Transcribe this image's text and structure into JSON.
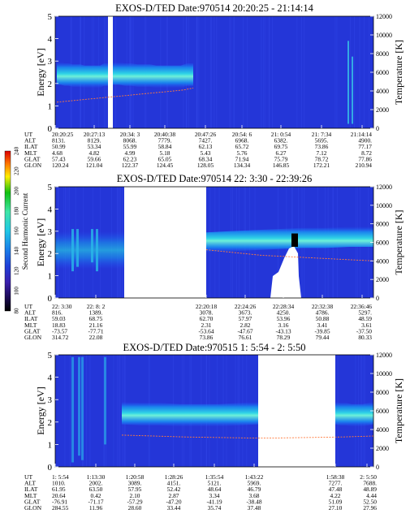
{
  "chart_data": {
    "type": "heatmap",
    "colorbar": {
      "label": "Second Harmonic Current",
      "ticks": [
        "80",
        "100",
        "120",
        "140",
        "160",
        "180",
        "200",
        "220",
        "240"
      ],
      "colors": [
        "#000000",
        "#2a0a6e",
        "#3a1fae",
        "#1f3fd8",
        "#1a7ce8",
        "#20c7e6",
        "#3fe6a8",
        "#10c010",
        "#ffee00",
        "#ff8800",
        "#dd0000"
      ]
    },
    "panels": [
      {
        "title": "EXOS-D/TED  Date:970514  20:20:25 - 21:14:14",
        "ylabel": "Energy [eV]",
        "ylabel_right": "Temperature [K]",
        "ylim": [
          0,
          5
        ],
        "yticks": [
          "0",
          "1",
          "2",
          "3",
          "4",
          "5"
        ],
        "ylim_right": [
          0,
          12000
        ],
        "yticks_right": [
          "0",
          "2000",
          "4000",
          "6000",
          "8000",
          "10000",
          "12000"
        ],
        "row_labels": [
          "UT",
          "ALT",
          "ILAT",
          "MLT",
          "GLAT",
          "GLON"
        ],
        "columns": [
          [
            "20:20:25",
            "8131.",
            "50.99",
            "4.68",
            "57.43",
            "120.24"
          ],
          [
            "20:27:13",
            "8129.",
            "53.34",
            "4.82",
            "59.66",
            "121.04"
          ],
          [
            "20:34: 3",
            "8068.",
            "55.99",
            "4.99",
            "62.23",
            "122.37"
          ],
          [
            "20:40:38",
            "7779.",
            "58.84",
            "5.18",
            "65.05",
            "124.45"
          ],
          [
            "20:47:26",
            "7427.",
            "62.13",
            "5.43",
            "68.34",
            "128.05"
          ],
          [
            "20:54: 6",
            "6968.",
            "65.72",
            "5.76",
            "71.94",
            "134.34"
          ],
          [
            "21: 0:54",
            "6382.",
            "69.75",
            "6.27",
            "75.79",
            "146.85"
          ],
          [
            "21: 7:34",
            "5695.",
            "73.86",
            "7.12",
            "78.72",
            "172.21"
          ],
          [
            "21:14:14",
            "4900.",
            "77.17",
            "8.72",
            "77.86",
            "210.94"
          ]
        ],
        "band_center_ev": [
          2.45,
          2.45,
          2.4,
          2.4,
          2.35,
          2.35,
          2.35,
          2.3,
          2.3,
          2.3,
          2.3,
          2.3,
          2.4,
          2.4
        ],
        "temperature_k": [
          2800,
          2900,
          3000,
          3100,
          3200,
          3300,
          3400,
          3500,
          3600,
          3700,
          3800,
          3900,
          4000,
          4100,
          4300
        ]
      },
      {
        "title": "EXOS-D/TED   Date:970514  22: 3:30 - 22:39:26",
        "ylabel": "Energy [eV]",
        "ylabel_right": "Temperature [K]",
        "ylim": [
          0,
          5
        ],
        "yticks": [
          "0",
          "1",
          "2",
          "3",
          "4",
          "5"
        ],
        "ylim_right": [
          0,
          12000
        ],
        "yticks_right": [
          "0",
          "2000",
          "4000",
          "6000",
          "8000",
          "10000",
          "12000"
        ],
        "row_labels": [
          "UT",
          "ALT",
          "ILAT",
          "MLT",
          "GLAT",
          "GLON"
        ],
        "columns": [
          [
            "22: 3:30",
            "816.",
            "59.03",
            "18.83",
            "-73.57",
            "314.72"
          ],
          [
            "22: 8: 2",
            "1389.",
            "68.75",
            "21.16",
            "-77.71",
            "22.08"
          ],
          [
            "22:20:18",
            "3078.",
            "62.70",
            "2.31",
            "-53.64",
            "73.86"
          ],
          [
            "22:24:26",
            "3673.",
            "57.97",
            "2.82",
            "-47.67",
            "76.61"
          ],
          [
            "22:28:34",
            "4250.",
            "53.96",
            "3.16",
            "-43.13",
            "78.29"
          ],
          [
            "22:32:38",
            "4786.",
            "50.88",
            "3.41",
            "-39.85",
            "79.44"
          ],
          [
            "22:36:46",
            "5297.",
            "48.59",
            "3.61",
            "-37.50",
            "80.33"
          ]
        ],
        "band_center_ev": [
          2.5,
          2.55,
          2.6,
          2.65,
          2.7,
          2.7,
          2.75,
          2.75
        ],
        "temperature_k": [
          5200,
          5000,
          4800,
          4600,
          4500,
          4400,
          4300,
          4200,
          4100,
          4000
        ]
      },
      {
        "title": "EXOS-D/TED   Date:970515  1: 5:54 - 2: 5:50",
        "ylabel": "Energy [eV]",
        "ylabel_right": "Temperature [K]",
        "ylim": [
          0,
          5
        ],
        "yticks": [
          "0",
          "1",
          "2",
          "3",
          "4",
          "5"
        ],
        "ylim_right": [
          0,
          12000
        ],
        "yticks_right": [
          "0",
          "2000",
          "4000",
          "6000",
          "8000",
          "10000",
          "12000"
        ],
        "row_labels": [
          "UT",
          "ALT",
          "ILAT",
          "MLT",
          "GLAT",
          "GLON"
        ],
        "columns": [
          [
            "1: 5:54",
            "1010.",
            "61.95",
            "20.64",
            "-76.91",
            "284.55"
          ],
          [
            "1:13:30",
            "2002.",
            "63.50",
            "0.42",
            "-71.17",
            "11.96"
          ],
          [
            "1:20:58",
            "3089.",
            "57.95",
            "2.10",
            "-57.29",
            "28.60"
          ],
          [
            "1:28:26",
            "4151.",
            "52.42",
            "2.87",
            "-47.20",
            "33.44"
          ],
          [
            "1:35:54",
            "5121.",
            "48.64",
            "3.34",
            "-41.19",
            "35.74"
          ],
          [
            "1:43:22",
            "5969.",
            "46.79",
            "3.68",
            "-38.48",
            "37.48"
          ],
          [
            "1:58:38",
            "7277.",
            "47.48",
            "4.22",
            "51.09",
            "27.10"
          ],
          [
            "2: 5:50",
            "7688.",
            "48.89",
            "4.44",
            "52.50",
            "27.96"
          ]
        ],
        "band_center_ev": [
          2.4,
          2.35,
          2.35,
          2.3,
          2.3,
          2.3,
          2.35,
          2.4
        ],
        "temperature_k": [
          3400,
          3300,
          3200,
          3150,
          3100,
          3100,
          3150,
          3200,
          3300
        ]
      }
    ]
  }
}
